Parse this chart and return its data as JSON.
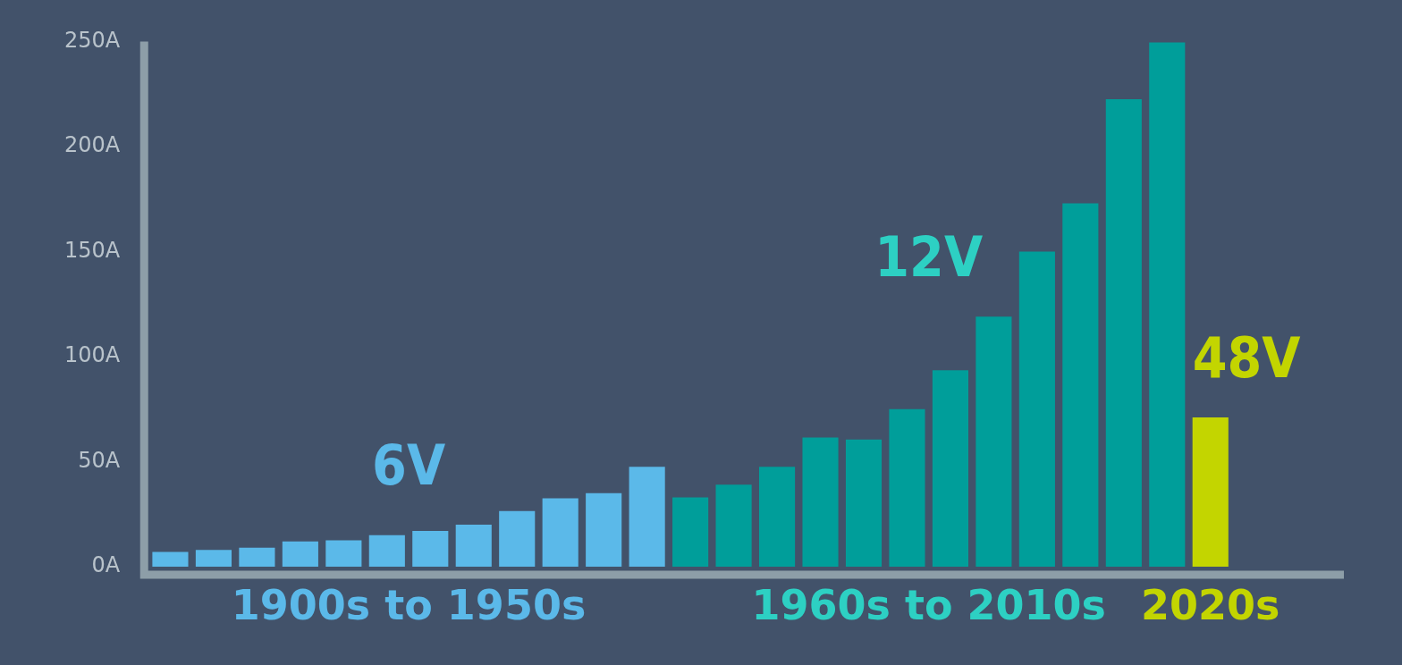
{
  "chart_data": {
    "type": "bar",
    "categories": [
      null,
      null,
      null,
      null,
      null,
      null,
      null,
      null,
      null,
      null,
      null,
      null,
      null,
      null,
      null,
      null,
      null,
      null,
      null,
      null,
      null,
      null,
      null,
      null,
      null
    ],
    "values": [
      7,
      8,
      9,
      12,
      12.5,
      15,
      17,
      20,
      26.5,
      32.5,
      35,
      47.5,
      33,
      39,
      47.5,
      61.5,
      60.5,
      75,
      93.5,
      119,
      150,
      173,
      222.5,
      249.5,
      71
    ],
    "colors": [
      "#5bb9e9",
      "#5bb9e9",
      "#5bb9e9",
      "#5bb9e9",
      "#5bb9e9",
      "#5bb9e9",
      "#5bb9e9",
      "#5bb9e9",
      "#5bb9e9",
      "#5bb9e9",
      "#5bb9e9",
      "#5bb9e9",
      "#009e9a",
      "#009e9a",
      "#009e9a",
      "#009e9a",
      "#009e9a",
      "#009e9a",
      "#009e9a",
      "#009e9a",
      "#009e9a",
      "#009e9a",
      "#009e9a",
      "#009e9a",
      "#c3d500"
    ],
    "ylim": [
      0,
      250
    ],
    "yticks": [
      {
        "value": 0,
        "label": "0A"
      },
      {
        "value": 50,
        "label": "50A"
      },
      {
        "value": 100,
        "label": "100A"
      },
      {
        "value": 150,
        "label": "150A"
      },
      {
        "value": 200,
        "label": "200A"
      },
      {
        "value": 250,
        "label": "250A"
      }
    ],
    "grid": false,
    "annotations": [
      "6V",
      "12V",
      "48V",
      "1900s to 1950s",
      "1960s to 2010s",
      "2020s"
    ]
  }
}
